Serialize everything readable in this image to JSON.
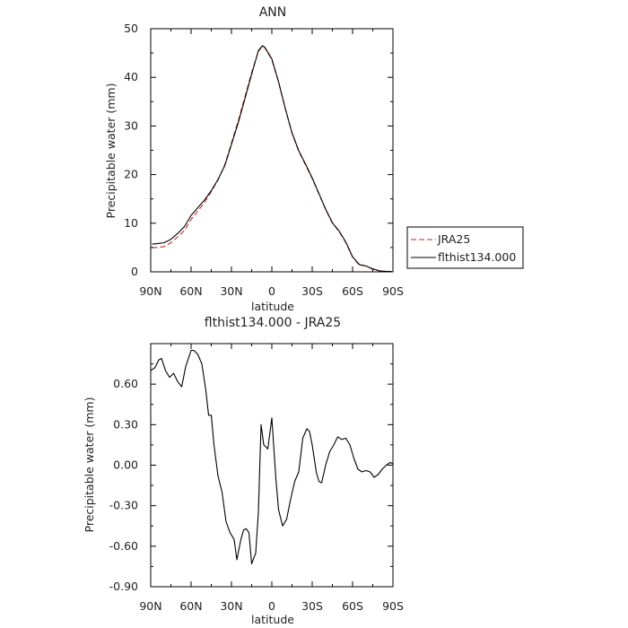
{
  "chart_data": [
    {
      "type": "line",
      "title": "ANN",
      "xlabel": "latitude",
      "ylabel": "Precipitable water (mm)",
      "xlim": [
        90,
        -90
      ],
      "ylim": [
        0,
        50
      ],
      "x_ticks": [
        90,
        60,
        30,
        0,
        -30,
        -60,
        -90
      ],
      "x_tick_labels": [
        "90N",
        "60N",
        "30N",
        "0",
        "30S",
        "60S",
        "90S"
      ],
      "y_ticks": [
        0,
        10,
        20,
        30,
        40,
        50
      ],
      "y_tick_labels": [
        "0",
        "10",
        "20",
        "30",
        "40",
        "50"
      ],
      "grid": false,
      "legend_position": "right",
      "series": [
        {
          "name": "JRA25",
          "color": "#cc2222",
          "dash": "dashed",
          "x": [
            89,
            85,
            80,
            75,
            70,
            65,
            60,
            55,
            50,
            45,
            40,
            35,
            30,
            25,
            20,
            15,
            10,
            7,
            5,
            2,
            0,
            -5,
            -10,
            -15,
            -20,
            -25,
            -30,
            -35,
            -40,
            -45,
            -50,
            -55,
            -60,
            -65,
            -70,
            -75,
            -80,
            -85,
            -89
          ],
          "y": [
            5.0,
            5.0,
            5.2,
            6.0,
            7.2,
            8.5,
            10.8,
            12.5,
            14.3,
            16.5,
            18.9,
            22.0,
            26.5,
            31.0,
            36.0,
            41.0,
            45.3,
            46.5,
            46.0,
            44.6,
            43.6,
            39.0,
            33.5,
            28.5,
            24.8,
            22.0,
            19.2,
            16.0,
            12.8,
            10.0,
            8.3,
            6.0,
            3.0,
            1.4,
            1.2,
            0.5,
            0.2,
            0.1,
            0.1
          ]
        },
        {
          "name": "flthist134.000",
          "color": "#000000",
          "dash": "solid",
          "x": [
            89,
            85,
            80,
            75,
            70,
            65,
            60,
            55,
            50,
            45,
            40,
            35,
            30,
            25,
            20,
            15,
            10,
            7,
            5,
            2,
            0,
            -5,
            -10,
            -15,
            -20,
            -25,
            -30,
            -35,
            -40,
            -45,
            -50,
            -55,
            -60,
            -65,
            -70,
            -75,
            -80,
            -85,
            -89
          ],
          "y": [
            5.7,
            5.8,
            6.0,
            6.7,
            7.9,
            9.3,
            11.6,
            13.2,
            14.8,
            16.7,
            19.0,
            21.8,
            26.2,
            30.6,
            35.6,
            40.6,
            45.5,
            46.5,
            46.1,
            44.7,
            43.8,
            39.1,
            33.6,
            28.6,
            24.9,
            22.2,
            19.3,
            16.1,
            12.9,
            10.1,
            8.4,
            6.1,
            3.1,
            1.5,
            1.2,
            0.6,
            0.2,
            0.1,
            0.1
          ]
        }
      ]
    },
    {
      "type": "line",
      "title": "flthist134.000 - JRA25",
      "xlabel": "latitude",
      "ylabel": "Precipitable water (mm)",
      "xlim": [
        90,
        -90
      ],
      "ylim": [
        -0.9,
        0.9
      ],
      "x_ticks": [
        90,
        60,
        30,
        0,
        -30,
        -60,
        -90
      ],
      "x_tick_labels": [
        "90N",
        "60N",
        "30N",
        "0",
        "30S",
        "60S",
        "90S"
      ],
      "y_ticks": [
        -0.9,
        -0.6,
        -0.3,
        0.0,
        0.3,
        0.6
      ],
      "y_tick_labels": [
        "-0.90",
        "-0.60",
        "-0.30",
        "0.00",
        "0.30",
        "0.60"
      ],
      "grid": false,
      "series": [
        {
          "color": "#000000",
          "dash": "solid",
          "x": [
            90,
            87,
            84,
            82,
            79,
            76,
            73,
            70,
            67,
            64,
            60,
            58,
            55,
            52,
            49,
            47,
            45,
            43,
            40,
            37,
            34,
            31,
            28,
            26,
            23,
            21,
            19,
            17,
            15,
            12,
            10,
            8,
            6,
            3,
            0,
            -3,
            -5,
            -8,
            -11,
            -14,
            -17,
            -20,
            -23,
            -26,
            -28,
            -30,
            -33,
            -35,
            -37,
            -40,
            -43,
            -46,
            -49,
            -52,
            -55,
            -58,
            -61,
            -64,
            -67,
            -70,
            -73,
            -76,
            -79,
            -82,
            -85,
            -88,
            -90
          ],
          "y": [
            0.7,
            0.72,
            0.78,
            0.79,
            0.7,
            0.65,
            0.68,
            0.62,
            0.58,
            0.73,
            0.85,
            0.85,
            0.82,
            0.75,
            0.55,
            0.37,
            0.37,
            0.15,
            -0.08,
            -0.2,
            -0.42,
            -0.5,
            -0.55,
            -0.7,
            -0.55,
            -0.48,
            -0.47,
            -0.5,
            -0.73,
            -0.65,
            -0.35,
            0.3,
            0.15,
            0.12,
            0.35,
            -0.1,
            -0.33,
            -0.45,
            -0.4,
            -0.25,
            -0.12,
            -0.05,
            0.2,
            0.27,
            0.25,
            0.15,
            -0.05,
            -0.12,
            -0.13,
            0.0,
            0.1,
            0.15,
            0.21,
            0.19,
            0.2,
            0.15,
            0.05,
            -0.03,
            -0.05,
            -0.04,
            -0.05,
            -0.09,
            -0.07,
            -0.03,
            0.0,
            0.02,
            0.01
          ]
        }
      ]
    }
  ]
}
